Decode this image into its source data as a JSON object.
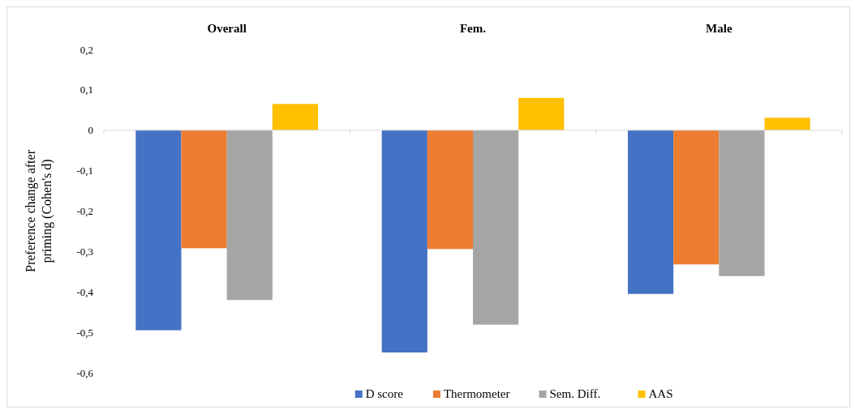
{
  "chart_data": {
    "type": "bar",
    "ylabel": "Preference change after priming (Cohen's d)",
    "categories": [
      "Overall",
      "Fem.",
      "Male"
    ],
    "series": [
      {
        "name": "D score",
        "color": "#4472c4",
        "values": [
          -0.495,
          -0.55,
          -0.405
        ]
      },
      {
        "name": "Thermometer",
        "color": "#ed7d31",
        "values": [
          -0.292,
          -0.294,
          -0.332
        ]
      },
      {
        "name": "Sem. Diff.",
        "color": "#a5a5a5",
        "values": [
          -0.42,
          -0.481,
          -0.361
        ]
      },
      {
        "name": "AAS",
        "color": "#ffc000",
        "values": [
          0.065,
          0.08,
          0.031
        ]
      }
    ],
    "ylim": [
      -0.6,
      0.2
    ],
    "yticks": [
      {
        "value": -0.6,
        "label": "-0,6"
      },
      {
        "value": -0.5,
        "label": "-0,5"
      },
      {
        "value": -0.4,
        "label": "-0,4"
      },
      {
        "value": -0.3,
        "label": "-0,3"
      },
      {
        "value": -0.2,
        "label": "-0,2"
      },
      {
        "value": -0.1,
        "label": "-0,1"
      },
      {
        "value": 0,
        "label": "0"
      },
      {
        "value": 0.1,
        "label": "0,1"
      },
      {
        "value": 0.2,
        "label": "0,2"
      }
    ],
    "legend": "bottom"
  }
}
